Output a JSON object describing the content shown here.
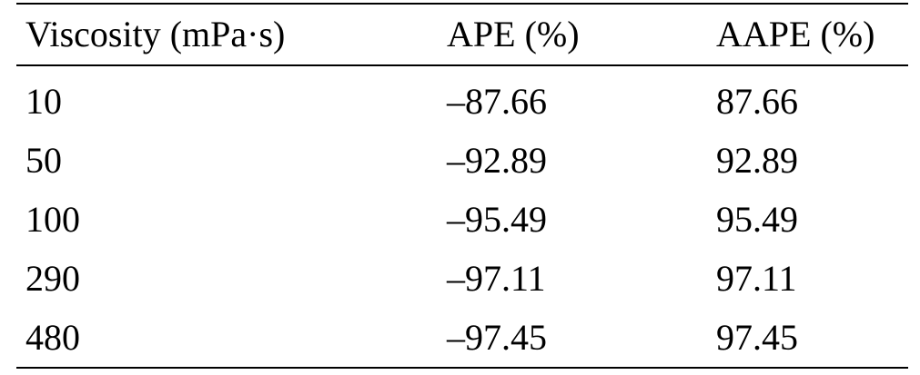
{
  "table": {
    "headers": [
      "Viscosity (mPa·s)",
      "APE (%)",
      "AAPE (%)"
    ],
    "rows": [
      [
        "10",
        "–87.66",
        "87.66"
      ],
      [
        "50",
        "–92.89",
        "92.89"
      ],
      [
        "100",
        "–95.49",
        "95.49"
      ],
      [
        "290",
        "–97.11",
        "97.11"
      ],
      [
        "480",
        "–97.45",
        "97.45"
      ]
    ]
  }
}
